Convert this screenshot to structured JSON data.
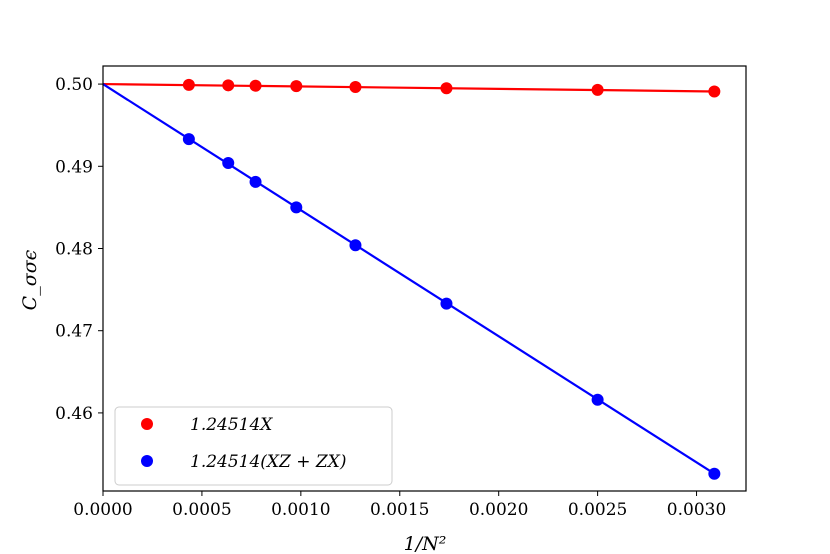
{
  "chart_data": {
    "type": "scatter",
    "xlabel": "1/N²",
    "ylabel": "C_σσϵ",
    "xlim": [
      0.0,
      0.00325
    ],
    "ylim": [
      0.4505,
      0.5022
    ],
    "xticks": [
      {
        "value": 0.0,
        "label": "0.0000"
      },
      {
        "value": 0.0005,
        "label": "0.0005"
      },
      {
        "value": 0.001,
        "label": "0.0010"
      },
      {
        "value": 0.0015,
        "label": "0.0015"
      },
      {
        "value": 0.002,
        "label": "0.0020"
      },
      {
        "value": 0.0025,
        "label": "0.0025"
      },
      {
        "value": 0.003,
        "label": "0.0030"
      }
    ],
    "yticks": [
      {
        "value": 0.46,
        "label": "0.46"
      },
      {
        "value": 0.47,
        "label": "0.47"
      },
      {
        "value": 0.48,
        "label": "0.48"
      },
      {
        "value": 0.49,
        "label": "0.49"
      },
      {
        "value": 0.5,
        "label": "0.50"
      }
    ],
    "grid": false,
    "legend_position": "bottom-left",
    "series": [
      {
        "name": "1.24514X",
        "color": "#ff0000",
        "x": [
          0.000434,
          0.000633,
          0.000771,
          0.000977,
          0.001276,
          0.001736,
          0.0025,
          0.00309
        ],
        "y": [
          0.4999,
          0.49985,
          0.4998,
          0.49975,
          0.49965,
          0.4995,
          0.4993,
          0.4991
        ],
        "fit": {
          "x": [
            0.0,
            0.00309
          ],
          "y": [
            0.5,
            0.4991
          ]
        }
      },
      {
        "name": "1.24514(XZ + ZX)",
        "color": "#0000ff",
        "x": [
          0.000434,
          0.000633,
          0.000771,
          0.000977,
          0.001276,
          0.001736,
          0.0025,
          0.00309
        ],
        "y": [
          0.4933,
          0.4904,
          0.4881,
          0.485,
          0.4804,
          0.4733,
          0.4616,
          0.4526
        ],
        "fit": {
          "x": [
            0.0,
            0.00309
          ],
          "y": [
            0.5,
            0.4526
          ]
        }
      }
    ]
  }
}
